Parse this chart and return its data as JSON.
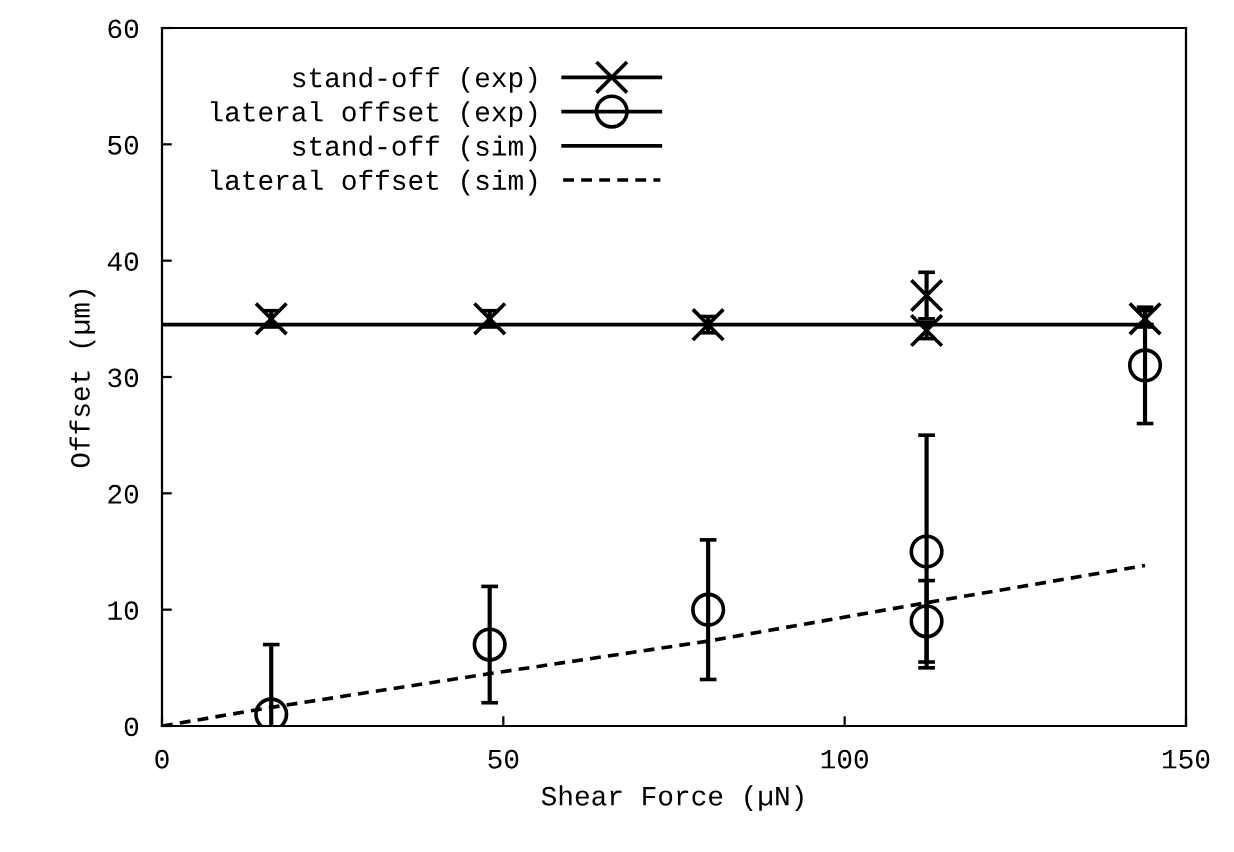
{
  "chart_data": {
    "type": "scatter",
    "xlabel": "Shear Force (µN)",
    "ylabel": "Offset (µm)",
    "xlim": [
      0,
      150
    ],
    "ylim": [
      0,
      60
    ],
    "xticks": [
      0,
      50,
      100,
      150
    ],
    "yticks": [
      0,
      10,
      20,
      30,
      40,
      50,
      60
    ],
    "grid": false,
    "legend": "top left",
    "series": [
      {
        "name": "stand-off (exp)",
        "marker": "cross",
        "color": "#000000",
        "x": [
          16,
          48,
          80,
          112,
          112,
          144
        ],
        "values": [
          35,
          35,
          34.5,
          37,
          34,
          35
        ],
        "errors": [
          0.7,
          0.7,
          0.7,
          2,
          0.7,
          0.7
        ]
      },
      {
        "name": "lateral offset (exp)",
        "marker": "circle",
        "color": "#000000",
        "x": [
          16,
          48,
          80,
          112,
          112,
          144
        ],
        "values": [
          1,
          7,
          10,
          15,
          9,
          31
        ],
        "errors": [
          6,
          5,
          6,
          10,
          3.5,
          5
        ]
      },
      {
        "name": "stand-off (sim)",
        "type": "line",
        "line_style": "solid",
        "color": "#000000",
        "x": [
          0,
          145
        ],
        "values": [
          34.5,
          34.5
        ]
      },
      {
        "name": "lateral offset (sim)",
        "type": "line",
        "line_style": "dashed",
        "color": "#000000",
        "x": [
          0,
          16,
          48,
          80,
          112,
          144
        ],
        "values": [
          0,
          1.6,
          4.5,
          7.3,
          10.6,
          13.8
        ]
      }
    ]
  }
}
